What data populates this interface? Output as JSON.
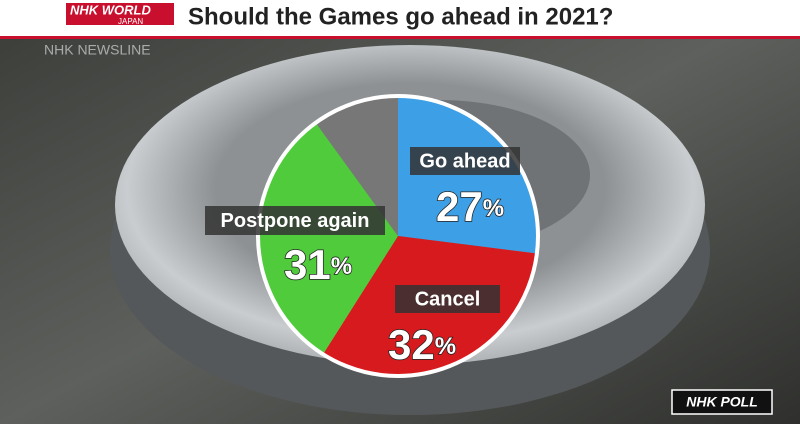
{
  "header": {
    "logo": "NHK WORLD",
    "logo_sub": "JAPAN",
    "title": "Should the Games go ahead in 2021?"
  },
  "watermark": "NHK NEWSLINE",
  "badge": "NHK POLL",
  "chart_data": {
    "type": "pie",
    "categories": [
      "Go ahead",
      "Cancel",
      "Postpone again",
      null
    ],
    "values": [
      27,
      32,
      31,
      10
    ],
    "value_labels": [
      "27%",
      "32%",
      "31%",
      null
    ],
    "colors": [
      "#3d9fe6",
      "#d71a1e",
      "#4fcb3c",
      "#777777"
    ]
  }
}
